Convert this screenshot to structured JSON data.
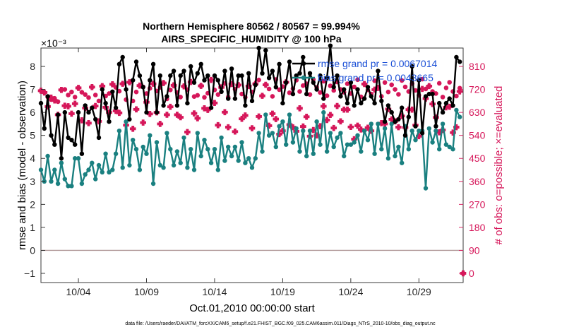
{
  "chart_data": {
    "type": "line",
    "title": "Northern Hemisphere 80562 / 80567 = 99.994%",
    "subtitle": "AIRS_SPECIFIC_HUMIDITY @ 100 hPa",
    "ylabel_left": "rmse and bias (model - observation)",
    "ylabel_right": "# of obs: o=possible; ×=evaluated",
    "xlabel": "Oct.01,2010 00:00:00 start",
    "exponent_label": "×10⁻³",
    "footer": "data file: /Users/raeder/DAI/ATM_forcXX/CAM6_setup/f.e21.FHIST_BGC.f09_025.CAM6assim.011/Diags_NTrS_2010-10/obs_diag_output.nc",
    "xlim": [
      1.25,
      32.25
    ],
    "ylim_left": [
      -1.4,
      8.8
    ],
    "ylim_right": [
      -36,
      882
    ],
    "x_ticks": [
      {
        "x": 4,
        "label": "10/04"
      },
      {
        "x": 9,
        "label": "10/09"
      },
      {
        "x": 14,
        "label": "10/14"
      },
      {
        "x": 19,
        "label": "10/19"
      },
      {
        "x": 24,
        "label": "10/24"
      },
      {
        "x": 29,
        "label": "10/29"
      }
    ],
    "y_ticks_left": [
      -1,
      0,
      1,
      2,
      3,
      4,
      5,
      6,
      7,
      8
    ],
    "y_ticks_right": [
      0,
      90,
      180,
      270,
      360,
      450,
      540,
      630,
      720,
      810
    ],
    "colors": {
      "rmse": "#000000",
      "bias": "#1a8080",
      "obs": "#d6175a",
      "zero_line": "#b09898",
      "legend_text": "#1a4fd6"
    },
    "x": [
      1.25,
      1.5,
      1.75,
      2.0,
      2.25,
      2.5,
      2.75,
      3.0,
      3.25,
      3.5,
      3.75,
      4.0,
      4.25,
      4.5,
      4.75,
      5.0,
      5.25,
      5.5,
      5.75,
      6.0,
      6.25,
      6.5,
      6.75,
      7.0,
      7.25,
      7.5,
      7.75,
      8.0,
      8.25,
      8.5,
      8.75,
      9.0,
      9.25,
      9.5,
      9.75,
      10.0,
      10.25,
      10.5,
      10.75,
      11.0,
      11.25,
      11.5,
      11.75,
      12.0,
      12.25,
      12.5,
      12.75,
      13.0,
      13.25,
      13.5,
      13.75,
      14.0,
      14.25,
      14.5,
      14.75,
      15.0,
      15.25,
      15.5,
      15.75,
      16.0,
      16.25,
      16.5,
      16.75,
      17.0,
      17.25,
      17.5,
      17.75,
      18.0,
      18.25,
      18.5,
      18.75,
      19.0,
      19.25,
      19.5,
      19.75,
      20.0,
      20.25,
      20.5,
      20.75,
      21.0,
      21.25,
      21.5,
      21.75,
      22.0,
      22.25,
      22.5,
      22.75,
      23.0,
      23.25,
      23.5,
      23.75,
      24.0,
      24.25,
      24.5,
      24.75,
      25.0,
      25.25,
      25.5,
      25.75,
      26.0,
      26.25,
      26.5,
      26.75,
      27.0,
      27.25,
      27.5,
      27.75,
      28.0,
      28.25,
      28.5,
      28.75,
      29.0,
      29.25,
      29.5,
      29.75,
      30.0,
      30.25,
      30.5,
      30.75,
      31.0,
      31.25,
      31.5,
      31.75,
      32.0
    ],
    "series": [
      {
        "name": "rmse grand pr = 0.0067014",
        "axis": "left",
        "marker": "circle-line",
        "values": [
          6.4,
          5.3,
          6.7,
          5.0,
          4.6,
          5.9,
          4.0,
          6.0,
          4.9,
          4.8,
          4.6,
          6.0,
          4.2,
          6.3,
          6.0,
          6.2,
          5.7,
          4.9,
          7.0,
          6.4,
          5.6,
          6.9,
          6.2,
          8.1,
          8.4,
          7.0,
          5.7,
          7.4,
          8.2,
          7.6,
          7.1,
          6.0,
          7.4,
          8.1,
          6.0,
          7.6,
          6.3,
          6.7,
          7.6,
          7.8,
          6.3,
          7.6,
          7.8,
          6.4,
          8.0,
          7.3,
          7.7,
          8.1,
          7.4,
          7.6,
          6.2,
          7.6,
          7.4,
          6.9,
          7.8,
          6.6,
          7.9,
          6.6,
          7.6,
          7.6,
          6.3,
          7.7,
          6.5,
          7.2,
          8.8,
          7.7,
          8.7,
          7.5,
          7.8,
          7.1,
          8.1,
          6.4,
          7.3,
          8.2,
          6.8,
          7.6,
          7.7,
          8.4,
          6.8,
          7.7,
          7.3,
          7.0,
          7.6,
          6.6,
          7.5,
          8.9,
          7.1,
          7.6,
          6.7,
          7.0,
          6.4,
          7.3,
          6.3,
          7.0,
          6.4,
          6.6,
          7.1,
          6.7,
          6.4,
          7.8,
          6.5,
          5.6,
          6.3,
          6.0,
          5.6,
          5.7,
          6.2,
          5.0,
          5.8,
          8.0,
          5.4,
          7.4,
          5.1,
          6.7,
          6.8,
          6.8,
          5.4,
          6.4,
          6.0,
          6.4,
          6.6,
          6.3,
          8.4,
          8.2
        ]
      },
      {
        "name": "bias grand pr = 0.0043665",
        "axis": "left",
        "marker": "circle-line",
        "values": [
          3.5,
          3.0,
          4.1,
          3.0,
          3.5,
          2.9,
          3.8,
          3.1,
          2.8,
          2.8,
          4.0,
          4.0,
          2.9,
          3.3,
          3.5,
          3.8,
          3.1,
          3.7,
          3.4,
          4.2,
          3.4,
          3.5,
          4.2,
          5.2,
          3.6,
          5.6,
          3.7,
          4.8,
          4.4,
          3.5,
          4.5,
          4.2,
          5.0,
          2.9,
          4.7,
          3.7,
          3.6,
          5.1,
          4.4,
          3.7,
          4.3,
          3.8,
          4.9,
          3.6,
          4.4,
          3.5,
          5.1,
          4.1,
          4.8,
          4.4,
          3.8,
          4.4,
          3.5,
          4.9,
          3.9,
          4.5,
          4.1,
          4.5,
          3.9,
          4.7,
          3.8,
          4.0,
          3.6,
          4.0,
          5.1,
          4.3,
          5.9,
          5.0,
          5.1,
          4.5,
          5.4,
          5.6,
          4.6,
          5.9,
          4.7,
          5.3,
          4.3,
          5.2,
          4.1,
          5.2,
          4.2,
          5.6,
          4.6,
          6.0,
          4.3,
          5.1,
          4.5,
          4.9,
          5.1,
          4.1,
          4.6,
          4.6,
          4.7,
          5.0,
          4.3,
          5.2,
          4.8,
          5.5,
          4.2,
          5.5,
          4.4,
          5.3,
          4.0,
          5.5,
          4.1,
          4.5,
          3.8,
          5.4,
          4.4,
          5.2,
          4.8,
          5.2,
          5.2,
          2.7,
          5.3,
          4.7,
          5.2,
          4.4,
          5.5,
          4.6,
          4.5,
          4.4,
          6.1,
          5.8
        ]
      },
      {
        "name": "obs possible",
        "axis": "right",
        "marker": "circle",
        "values": [
          715,
          708,
          690,
          680,
          685,
          672,
          718,
          720,
          698,
          710,
          690,
          726,
          709,
          700,
          688,
          729,
          698,
          675,
          733,
          694,
          704,
          740,
          728,
          713,
          742,
          680,
          748,
          675,
          710,
          735,
          730,
          704,
          724,
          742,
          714,
          728,
          745,
          683,
          718,
          736,
          708,
          690,
          732,
          719,
          749,
          692,
          697,
          734,
          689,
          705,
          757,
          718,
          700,
          728,
          743,
          690,
          741,
          721,
          737,
          702,
          689,
          733,
          710,
          742,
          757,
          695,
          738,
          722,
          693,
          759,
          719,
          731,
          748,
          707,
          723,
          756,
          712,
          735,
          742,
          700,
          759,
          728,
          708,
          752,
          695,
          734,
          716,
          749,
          720,
          709,
          742,
          704,
          730,
          758,
          691,
          741,
          718,
          702,
          754,
          726,
          693,
          747,
          710,
          738,
          720,
          701,
          755,
          730,
          712,
          743,
          716,
          697,
          760,
          722,
          733,
          712,
          704,
          744,
          690,
          726,
          748,
          712,
          694,
          725
        ]
      },
      {
        "name": "obs evaluated",
        "axis": "right",
        "marker": "cross",
        "values": [
          715,
          708,
          653,
          688,
          677,
          621,
          718,
          656,
          654,
          625,
          664,
          726,
          599,
          647,
          588,
          729,
          655,
          595,
          733,
          650,
          630,
          740,
          636,
          628,
          742,
          580,
          748,
          566,
          642,
          735,
          590,
          670,
          624,
          742,
          630,
          585,
          745,
          621,
          652,
          736,
          621,
          611,
          732,
          553,
          749,
          626,
          607,
          734,
          646,
          640,
          757,
          667,
          580,
          728,
          631,
          572,
          741,
          555,
          737,
          605,
          618,
          733,
          568,
          742,
          614,
          695,
          738,
          578,
          625,
          604,
          545,
          558,
          748,
          582,
          572,
          556,
          646,
          575,
          613,
          537,
          561,
          540,
          576,
          654,
          600,
          620,
          569,
          655,
          595,
          641,
          641,
          573,
          525,
          578,
          563,
          741,
          570,
          558,
          719,
          726,
          588,
          585,
          643,
          603,
          595,
          572,
          616,
          571,
          641,
          641,
          580,
          537,
          722,
          684,
          733,
          663,
          610,
          552,
          561,
          650,
          652,
          551,
          572,
          712
        ]
      }
    ]
  }
}
